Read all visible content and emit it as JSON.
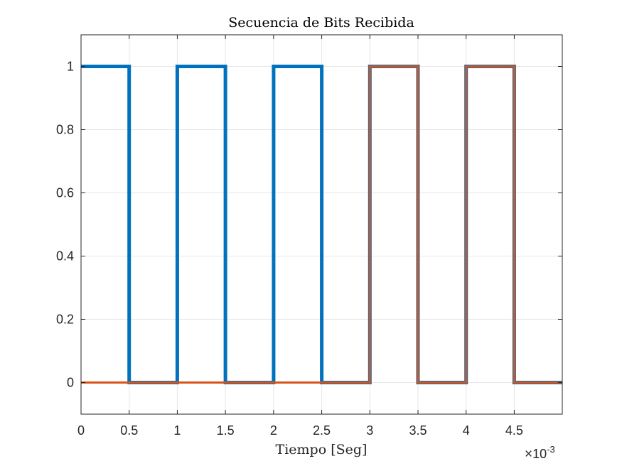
{
  "chart_data": {
    "type": "line",
    "title": "Secuencia de Bits Recibida",
    "xlabel": "Tiempo [Seg]",
    "ylabel": "",
    "x_exponent": {
      "times": "×",
      "base": "10",
      "power": "-3"
    },
    "xlim": [
      0,
      4.999
    ],
    "ylim": [
      -0.1,
      1.1
    ],
    "xticks": [
      0,
      0.5,
      1,
      1.5,
      2,
      2.5,
      3,
      3.5,
      4,
      4.5
    ],
    "xtick_labels": [
      "0",
      "0.5",
      "1",
      "1.5",
      "2",
      "2.5",
      "3",
      "3.5",
      "4",
      "4.5"
    ],
    "yticks": [
      0,
      0.2,
      0.4,
      0.6,
      0.8,
      1
    ],
    "ytick_labels": [
      "0",
      "0.2",
      "0.4",
      "0.6",
      "0.8",
      "1"
    ],
    "grid": true,
    "series": [
      {
        "color": "#0072BD",
        "x": [
          0,
          0.5,
          0.5,
          1,
          1,
          1.5,
          1.5,
          2,
          2,
          2.5,
          2.5,
          3,
          3,
          3.5,
          3.5,
          4,
          4,
          4.5,
          4.5,
          4.999
        ],
        "values": [
          1,
          1,
          0,
          0,
          1,
          1,
          0,
          0,
          1,
          1,
          0,
          0,
          1,
          1,
          0,
          0,
          1,
          1,
          0,
          0
        ]
      },
      {
        "color": "#D95319",
        "x": [
          0,
          3,
          3,
          3.5,
          3.5,
          4,
          4,
          4.5,
          4.5,
          4.999
        ],
        "values": [
          0,
          0,
          1,
          1,
          0,
          0,
          1,
          1,
          0,
          0
        ]
      }
    ]
  }
}
